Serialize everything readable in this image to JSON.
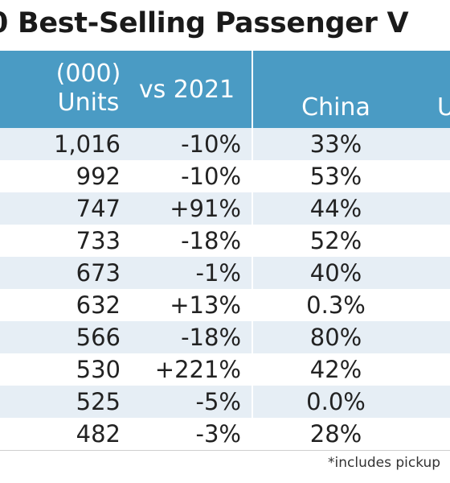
{
  "title": "0 Best-Selling Passenger V",
  "headers": {
    "units_line1": "(000)",
    "units_line2": "Units",
    "vs": "vs 2021",
    "china": "China",
    "cut": "U"
  },
  "rows": [
    {
      "units": "1,016",
      "vs": "-10%",
      "china": "33%"
    },
    {
      "units": "992",
      "vs": "-10%",
      "china": "53%"
    },
    {
      "units": "747",
      "vs": "+91%",
      "china": "44%"
    },
    {
      "units": "733",
      "vs": "-18%",
      "china": "52%"
    },
    {
      "units": "673",
      "vs": "-1%",
      "china": "40%"
    },
    {
      "units": "632",
      "vs": "+13%",
      "china": "0.3%"
    },
    {
      "units": "566",
      "vs": "-18%",
      "china": "80%"
    },
    {
      "units": "530",
      "vs": "+221%",
      "china": "42%"
    },
    {
      "units": "525",
      "vs": "-5%",
      "china": "0.0%"
    },
    {
      "units": "482",
      "vs": "-3%",
      "china": "28%"
    }
  ],
  "footnote": "*includes pickup",
  "colors": {
    "header_bg": "#4a9bc4",
    "row_shade": "#e6eef5",
    "text": "#222222"
  }
}
